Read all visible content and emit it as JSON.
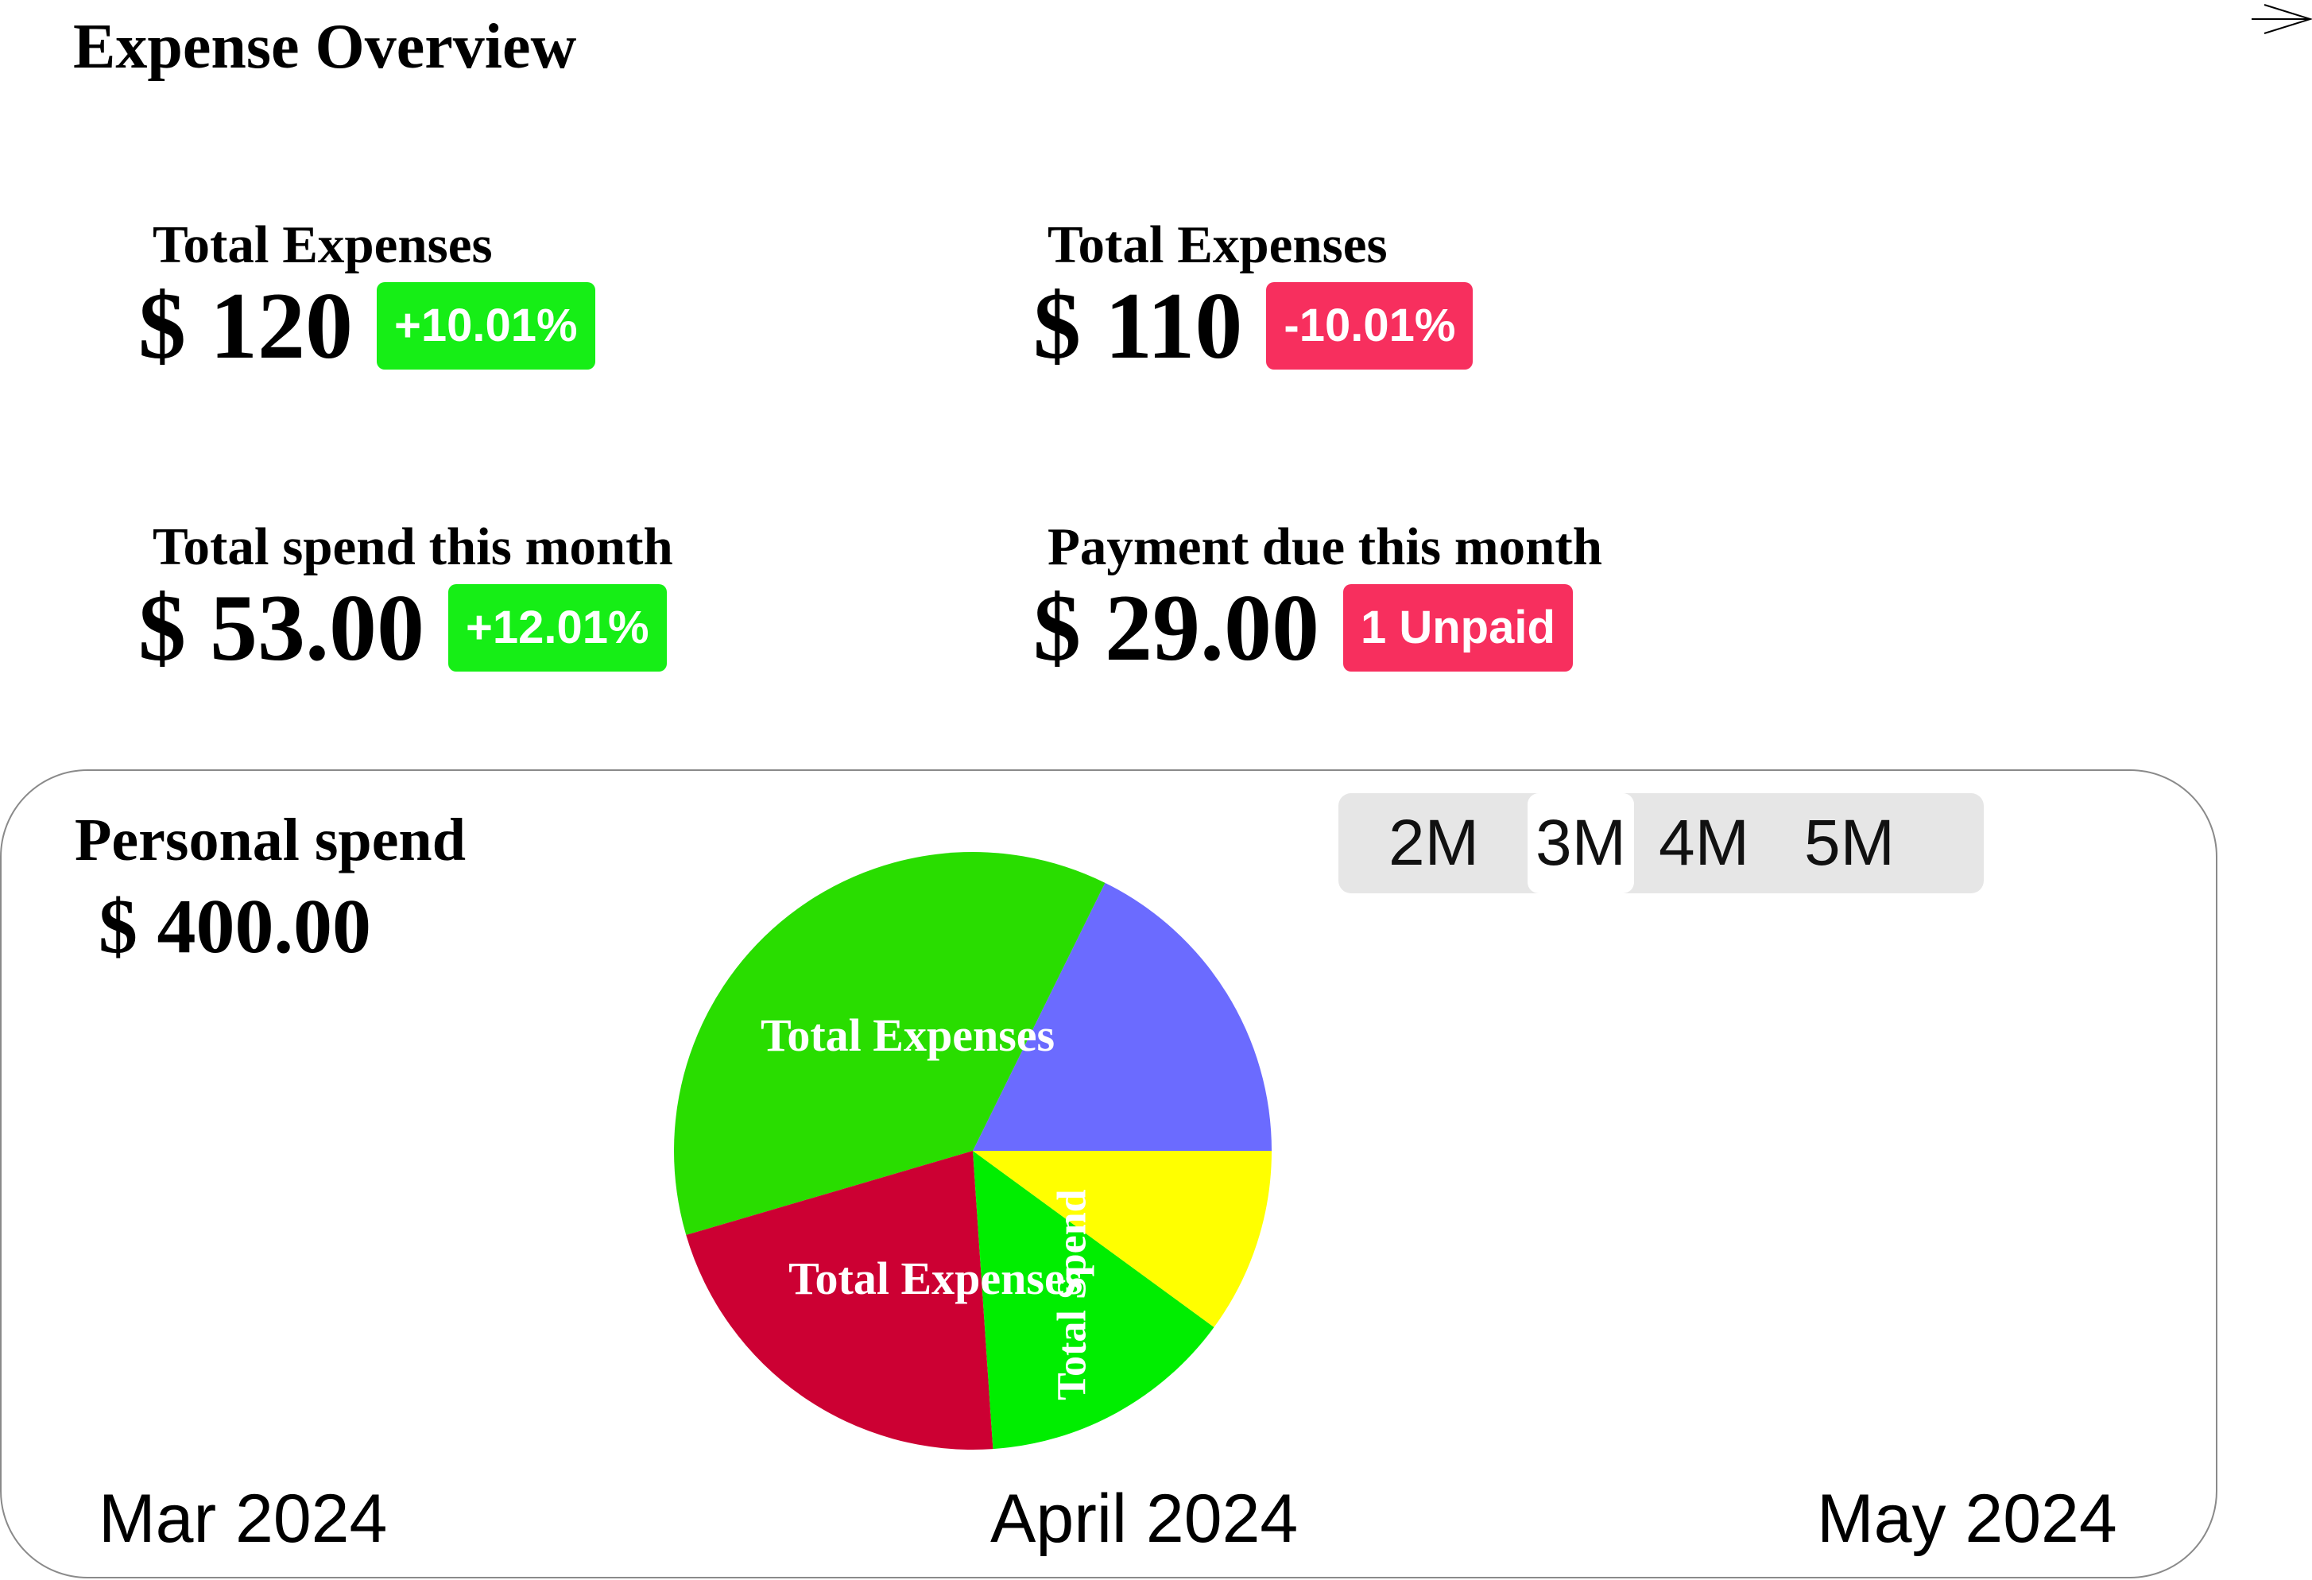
{
  "page": {
    "title": "Expense Overview",
    "corner_icon": "arrow-right-icon"
  },
  "stats": [
    {
      "label": "Total Expenses",
      "value": "$ 120",
      "badge": "+10.01%",
      "badge_color": "#16ee16"
    },
    {
      "label": "Total Expenses",
      "value": "$ 110",
      "badge": "-10.01%",
      "badge_color": "#f72f5e"
    },
    {
      "label": "Total spend this month",
      "value": "$ 53.00",
      "badge": "+12.01%",
      "badge_color": "#16ee16"
    },
    {
      "label": "Payment due this month",
      "value": "$ 29.00",
      "badge": "1 Unpaid",
      "badge_color": "#f72f5e"
    }
  ],
  "personal_spend": {
    "title": "Personal spend",
    "value": "$ 400.00"
  },
  "range_selector": {
    "options": [
      "2M",
      "3M",
      "4M",
      "5M"
    ],
    "selected": "3M"
  },
  "timeline": {
    "labels": [
      "Mar 2024",
      "April 2024",
      "May 2024"
    ]
  },
  "chart_data": {
    "type": "pie",
    "slices": [
      {
        "label": "",
        "value": 18.5,
        "color": "#6b6bff"
      },
      {
        "label": "Total Expenses",
        "value": 38.5,
        "color": "#29dd00"
      },
      {
        "label": "Total Expenses",
        "value": 22.5,
        "color": "#cc0033"
      },
      {
        "label": "Total Spend",
        "value": 14.5,
        "color": "#00ee00"
      },
      {
        "label": "",
        "value": 10.5,
        "color": "#ffff00"
      }
    ]
  }
}
